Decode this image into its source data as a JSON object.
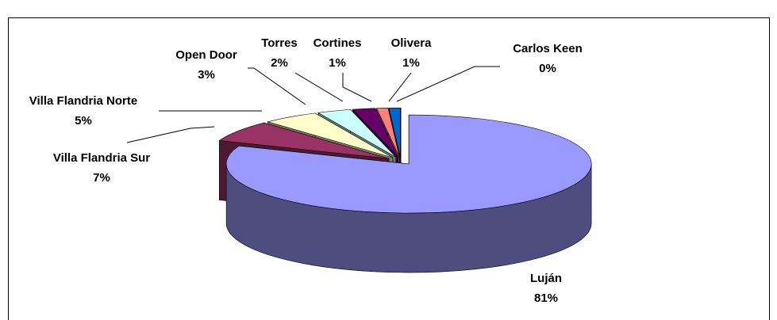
{
  "chart_data": {
    "type": "pie3d",
    "categories": [
      "Luján",
      "Villa Flandria Sur",
      "Villa Flandria Norte",
      "Open Door",
      "Torres",
      "Cortines",
      "Olivera",
      "Carlos Keen"
    ],
    "values": [
      81,
      7,
      5,
      3,
      2,
      1,
      1,
      0
    ],
    "value_labels": [
      "81%",
      "7%",
      "5%",
      "3%",
      "2%",
      "1%",
      "1%",
      "0%"
    ],
    "colors": [
      "#9999ff",
      "#993366",
      "#ffffcc",
      "#ccffff",
      "#660066",
      "#ff8080",
      "#0066cc",
      "#c0c0c0"
    ]
  }
}
